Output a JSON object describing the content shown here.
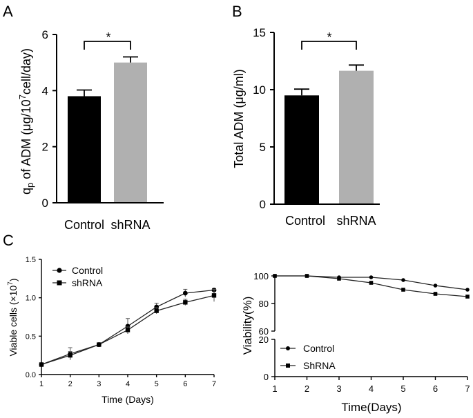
{
  "panels": {
    "a": "A",
    "b": "B",
    "c": "C"
  },
  "chart_data": [
    {
      "id": "A",
      "type": "bar",
      "categories": [
        "Control",
        "shRNA"
      ],
      "values": [
        3.8,
        5.0
      ],
      "errors": [
        0.22,
        0.2
      ],
      "bar_colors": [
        "#000000",
        "#b0b0b0"
      ],
      "ylabel_main": "q",
      "ylabel_sub": "p",
      "ylabel_mid": " of ADM (μg/10",
      "ylabel_sup": "7",
      "ylabel_end": "cell/day)",
      "ylim": [
        0,
        6
      ],
      "yticks": [
        "0",
        "2",
        "4",
        "6"
      ],
      "significance": "*"
    },
    {
      "id": "B",
      "type": "bar",
      "categories": [
        "Control",
        "shRNA"
      ],
      "values": [
        9.5,
        11.65
      ],
      "errors": [
        0.55,
        0.5
      ],
      "bar_colors": [
        "#000000",
        "#b0b0b0"
      ],
      "ylabel": "Total ADM (μg/ml)",
      "ylim": [
        0,
        15
      ],
      "yticks": [
        "0",
        "5",
        "10",
        "15"
      ],
      "significance": "*"
    },
    {
      "id": "C1",
      "type": "line",
      "x": [
        1,
        2,
        3,
        4,
        5,
        6,
        7
      ],
      "xticks": [
        "1",
        "2",
        "3",
        "4",
        "5",
        "6",
        "7"
      ],
      "series": [
        {
          "name": "Control",
          "marker": "circle",
          "values": [
            0.13,
            0.27,
            0.39,
            0.63,
            0.88,
            1.06,
            1.1
          ],
          "errors": [
            0.01,
            0.08,
            0.02,
            0.1,
            0.05,
            0.05,
            0.02
          ]
        },
        {
          "name": "shRNA",
          "marker": "square",
          "values": [
            0.13,
            0.25,
            0.39,
            0.58,
            0.83,
            0.94,
            1.03
          ],
          "errors": [
            0.01,
            0.05,
            0.02,
            0.04,
            0.04,
            0.04,
            0.08
          ]
        }
      ],
      "xlabel": "Time (Days)",
      "ylabel_text": "Viable cells (×10",
      "ylabel_sup": "7",
      "ylabel_end": ")",
      "ylim": [
        0,
        1.5
      ],
      "yticks": [
        "0.0",
        "0.5",
        "1.0",
        "1.5"
      ]
    },
    {
      "id": "C2",
      "type": "line",
      "x": [
        1,
        2,
        3,
        4,
        5,
        6,
        7
      ],
      "xticks": [
        "1",
        "2",
        "3",
        "4",
        "5",
        "6",
        "7"
      ],
      "series": [
        {
          "name": "Control",
          "marker": "circle",
          "values": [
            100,
            100,
            99,
            99,
            97,
            93,
            90
          ]
        },
        {
          "name": "ShRNA",
          "marker": "square",
          "values": [
            100,
            100,
            98,
            95,
            90,
            87,
            85
          ]
        }
      ],
      "xlabel": "Time(Days)",
      "ylabel": "Viability(%)",
      "axis_break": [
        20,
        60
      ],
      "yticks_upper": [
        "60",
        "80",
        "100"
      ],
      "yticks_lower": [
        "0",
        "20"
      ]
    }
  ]
}
